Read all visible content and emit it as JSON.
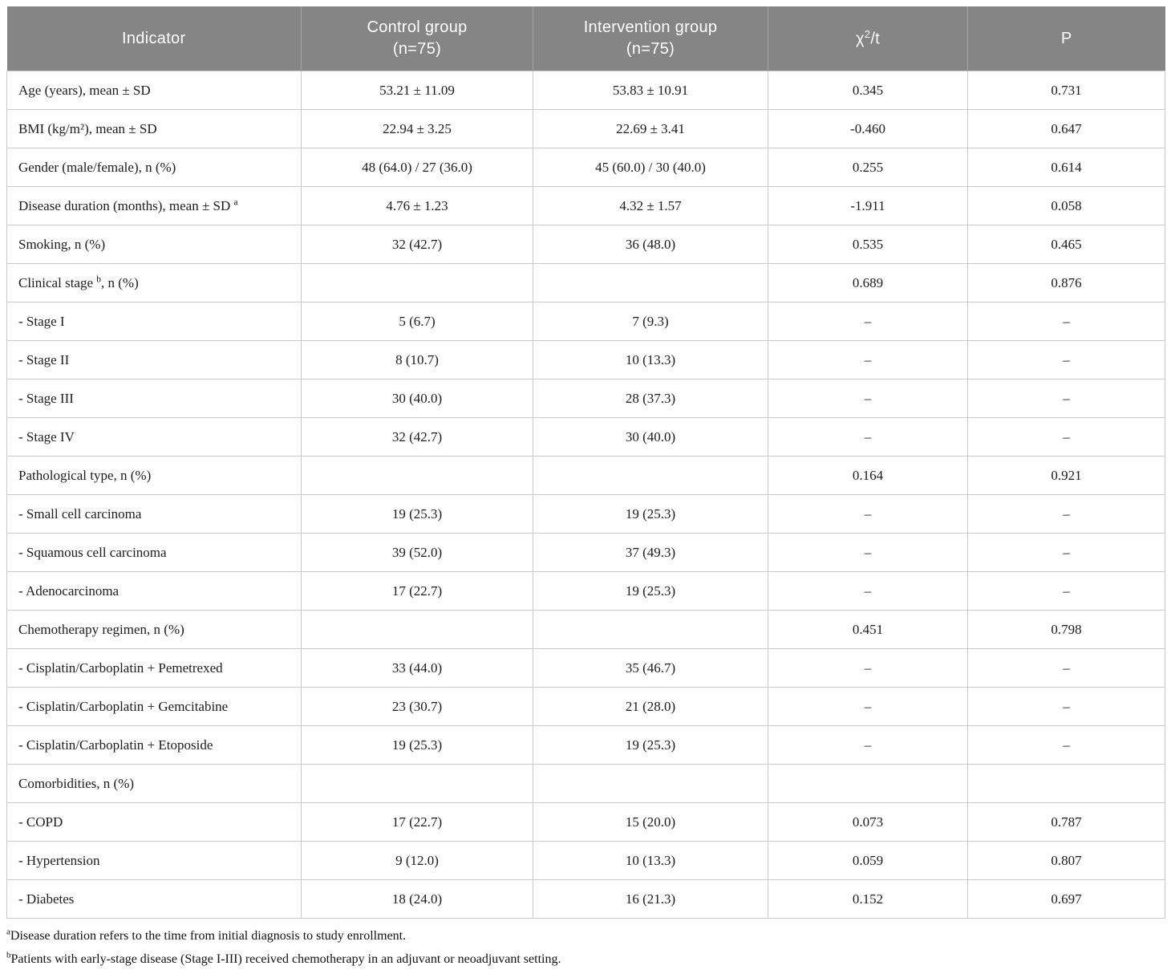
{
  "table": {
    "header": {
      "indicator": "Indicator",
      "control": {
        "line1": "Control group",
        "line2": "(n=75)"
      },
      "intervention": {
        "line1": "Intervention group",
        "line2": "(n=75)"
      },
      "chi": {
        "base": "χ",
        "sup": "2",
        "rest": "/t"
      },
      "p": "P"
    },
    "rows": [
      {
        "indicator": [
          "Age (years), mean ± SD",
          "",
          ""
        ],
        "cells": [
          "53.21 ± 11.09",
          "53.83 ± 10.91",
          "0.345",
          "0.731"
        ]
      },
      {
        "indicator": [
          "BMI (kg/m²), mean ± SD",
          "",
          ""
        ],
        "cells": [
          "22.94 ± 3.25",
          "22.69 ± 3.41",
          "-0.460",
          "0.647"
        ]
      },
      {
        "indicator": [
          "Gender (male/female), n (%)",
          "",
          ""
        ],
        "cells": [
          "48 (64.0) / 27 (36.0)",
          "45 (60.0) / 30 (40.0)",
          "0.255",
          "0.614"
        ]
      },
      {
        "indicator": [
          "Disease duration (months), mean ± SD ",
          "a",
          ""
        ],
        "cells": [
          "4.76 ± 1.23",
          "4.32 ± 1.57",
          "-1.911",
          "0.058"
        ]
      },
      {
        "indicator": [
          "Smoking, n (%)",
          "",
          ""
        ],
        "cells": [
          "32 (42.7)",
          "36 (48.0)",
          "0.535",
          "0.465"
        ]
      },
      {
        "indicator": [
          "Clinical stage ",
          "b",
          ", n (%)"
        ],
        "cells": [
          "",
          "",
          "0.689",
          "0.876"
        ]
      },
      {
        "indicator": [
          "- Stage I",
          "",
          ""
        ],
        "cells": [
          "5 (6.7)",
          "7 (9.3)",
          "–",
          "–"
        ]
      },
      {
        "indicator": [
          "- Stage II",
          "",
          ""
        ],
        "cells": [
          "8 (10.7)",
          "10 (13.3)",
          "–",
          "–"
        ]
      },
      {
        "indicator": [
          "- Stage III",
          "",
          ""
        ],
        "cells": [
          "30 (40.0)",
          "28 (37.3)",
          "–",
          "–"
        ]
      },
      {
        "indicator": [
          "- Stage IV",
          "",
          ""
        ],
        "cells": [
          "32 (42.7)",
          "30 (40.0)",
          "–",
          "–"
        ]
      },
      {
        "indicator": [
          "Pathological type, n (%)",
          "",
          ""
        ],
        "cells": [
          "",
          "",
          "0.164",
          "0.921"
        ]
      },
      {
        "indicator": [
          "- Small cell carcinoma",
          "",
          ""
        ],
        "cells": [
          "19 (25.3)",
          "19 (25.3)",
          "–",
          "–"
        ]
      },
      {
        "indicator": [
          "- Squamous cell carcinoma",
          "",
          ""
        ],
        "cells": [
          "39 (52.0)",
          "37 (49.3)",
          "–",
          "–"
        ]
      },
      {
        "indicator": [
          "- Adenocarcinoma",
          "",
          ""
        ],
        "cells": [
          "17 (22.7)",
          "19 (25.3)",
          "–",
          "–"
        ]
      },
      {
        "indicator": [
          "Chemotherapy regimen, n (%)",
          "",
          ""
        ],
        "cells": [
          "",
          "",
          "0.451",
          "0.798"
        ]
      },
      {
        "indicator": [
          "- Cisplatin/Carboplatin + Pemetrexed",
          "",
          ""
        ],
        "cells": [
          "33 (44.0)",
          "35 (46.7)",
          "–",
          "–"
        ]
      },
      {
        "indicator": [
          "- Cisplatin/Carboplatin + Gemcitabine",
          "",
          ""
        ],
        "cells": [
          "23 (30.7)",
          "21 (28.0)",
          "–",
          "–"
        ]
      },
      {
        "indicator": [
          "- Cisplatin/Carboplatin + Etoposide",
          "",
          ""
        ],
        "cells": [
          "19 (25.3)",
          "19 (25.3)",
          "–",
          "–"
        ]
      },
      {
        "indicator": [
          "Comorbidities, n (%)",
          "",
          ""
        ],
        "cells": [
          "",
          "",
          "",
          ""
        ]
      },
      {
        "indicator": [
          "- COPD",
          "",
          ""
        ],
        "cells": [
          "17 (22.7)",
          "15 (20.0)",
          "0.073",
          "0.787"
        ]
      },
      {
        "indicator": [
          "- Hypertension",
          "",
          ""
        ],
        "cells": [
          "9 (12.0)",
          "10 (13.3)",
          "0.059",
          "0.807"
        ]
      },
      {
        "indicator": [
          "- Diabetes",
          "",
          ""
        ],
        "cells": [
          "18 (24.0)",
          "16 (21.3)",
          "0.152",
          "0.697"
        ]
      }
    ]
  },
  "footnotes": [
    {
      "marker": "a",
      "text": "Disease duration refers to the time from initial diagnosis to study enrollment."
    },
    {
      "marker": "b",
      "text": "Patients with early-stage disease (Stage I-III) received chemotherapy in an adjuvant or neoadjuvant setting."
    }
  ],
  "colors": {
    "header_bg": "#858585",
    "header_text": "#ffffff",
    "body_text": "#1c1c1c",
    "grid_border": "#c9c9c9"
  }
}
